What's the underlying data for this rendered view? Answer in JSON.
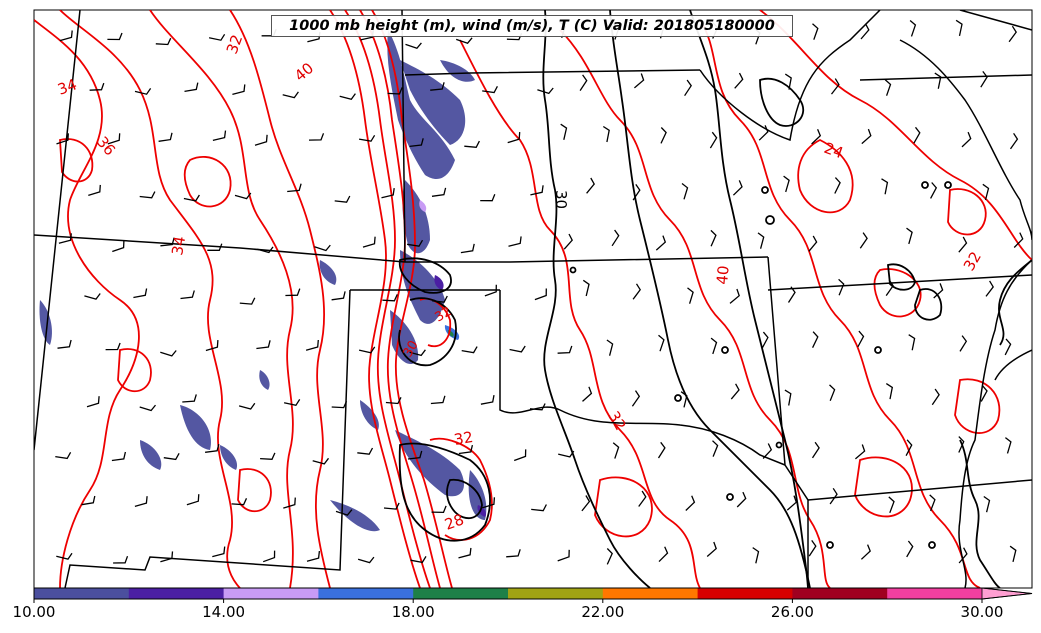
{
  "title": "1000 mb height (m), wind (m/s), T (C) Valid: 201805180000",
  "map": {
    "contour_labels": [
      {
        "text": "32",
        "color": "#e00000"
      },
      {
        "text": "34",
        "color": "#e00000"
      },
      {
        "text": "40",
        "color": "#e00000"
      },
      {
        "text": "36",
        "color": "#e00000"
      },
      {
        "text": "34",
        "color": "#e00000"
      },
      {
        "text": "30",
        "color": "#000000"
      },
      {
        "text": "24",
        "color": "#e00000"
      },
      {
        "text": "40",
        "color": "#e00000"
      },
      {
        "text": "32",
        "color": "#e00000"
      },
      {
        "text": "32",
        "color": "#e00000"
      },
      {
        "text": "28",
        "color": "#e00000"
      },
      {
        "text": "32",
        "color": "#e00000"
      },
      {
        "text": "30",
        "color": "#e00000"
      },
      {
        "text": "32",
        "color": "#e00000"
      }
    ],
    "temp_contour_color": "#ee0000",
    "height_contour_color": "#000000",
    "wind_barb_color": "#000000"
  },
  "colorbar": {
    "min": 10,
    "max": 31,
    "colors": [
      "#4b4f9e",
      "#4b1fa3",
      "#c89bf5",
      "#3a70dd",
      "#1e8048",
      "#a1a314",
      "#ff7700",
      "#d70000",
      "#a00020",
      "#f13fa0",
      "#ff9fd2"
    ],
    "ticks": [
      "10.00",
      "14.00",
      "18.00",
      "22.00",
      "26.00",
      "30.00"
    ]
  }
}
